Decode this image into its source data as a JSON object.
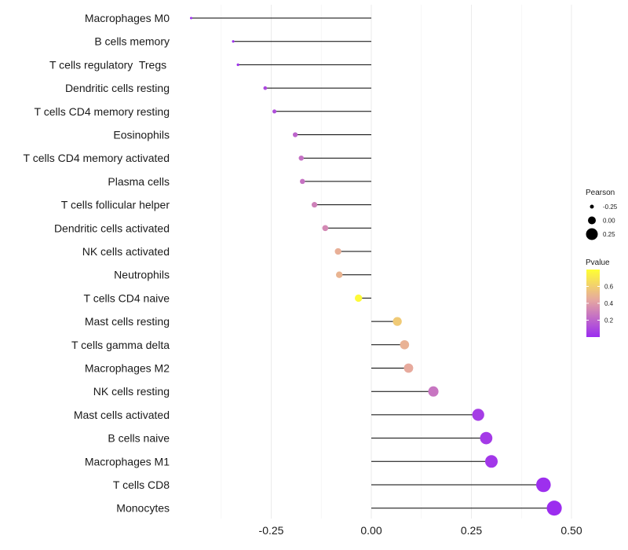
{
  "chart_data": {
    "type": "lollipop",
    "categories": [
      "Macrophages M0",
      "B cells memory",
      "T cells regulatory  Tregs ",
      "Dendritic cells resting",
      "T cells CD4 memory resting",
      "Eosinophils",
      "T cells CD4 memory activated",
      "Plasma cells",
      "T cells follicular helper",
      "Dendritic cells activated",
      "NK cells activated",
      "Neutrophils",
      "T cells CD4 naive",
      "Mast cells resting",
      "T cells gamma delta",
      "Macrophages M2",
      "NK cells resting",
      "Mast cells activated",
      "B cells naive",
      "Macrophages M1",
      "T cells CD8",
      "Monocytes"
    ],
    "values": [
      -0.45,
      -0.345,
      -0.333,
      -0.265,
      -0.242,
      -0.19,
      -0.175,
      -0.172,
      -0.142,
      -0.115,
      -0.083,
      -0.08,
      -0.032,
      0.065,
      0.083,
      0.093,
      0.155,
      0.267,
      0.287,
      0.3,
      0.43,
      0.457
    ],
    "pvalues": [
      0.01,
      0.02,
      0.03,
      0.1,
      0.12,
      0.2,
      0.24,
      0.25,
      0.3,
      0.33,
      0.47,
      0.49,
      0.78,
      0.58,
      0.48,
      0.45,
      0.26,
      0.06,
      0.05,
      0.04,
      0.01,
      0.005
    ],
    "xlim": [
      -0.5,
      0.6
    ],
    "xticks": [
      -0.25,
      0.0,
      0.25,
      0.5
    ],
    "xtick_labels": [
      "-0.25",
      "0.00",
      "0.25",
      "0.50"
    ],
    "legend_size": {
      "title": "Pearson",
      "entries": [
        {
          "value": -0.25,
          "label": "-0.25"
        },
        {
          "value": 0.0,
          "label": "0.00"
        },
        {
          "value": 0.25,
          "label": "0.25"
        }
      ]
    },
    "legend_color": {
      "title": "Pvalue",
      "range": [
        0.0,
        0.8
      ],
      "ticks": [
        {
          "value": 0.2,
          "label": "0.2"
        },
        {
          "value": 0.4,
          "label": "0.4"
        },
        {
          "value": 0.6,
          "label": "0.6"
        }
      ],
      "low_color": "#9b2cf0",
      "mid_color": "#e6a8a0",
      "high_color": "#ffff33"
    }
  }
}
